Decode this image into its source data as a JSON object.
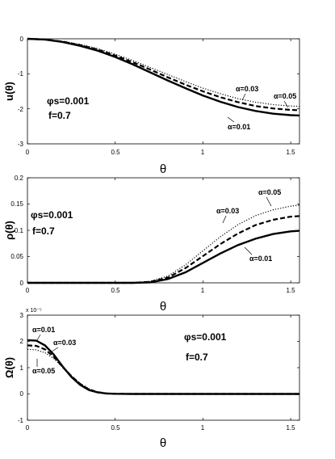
{
  "chart_data": [
    {
      "type": "line",
      "ylabel": "u(θ)",
      "xlabel": "θ",
      "xlim": [
        0,
        1.55
      ],
      "ylim": [
        -3,
        0
      ],
      "xticks": [
        "0",
        "0.5",
        "1",
        "1.5"
      ],
      "yticks": [
        "0",
        "-1",
        "-2",
        "-3"
      ],
      "params": [
        "φs=0.001",
        "f=0.7"
      ],
      "series": [
        {
          "name": "α=0.01",
          "style": "solid",
          "x": [
            0,
            0.1,
            0.2,
            0.3,
            0.4,
            0.5,
            0.6,
            0.7,
            0.8,
            0.9,
            1.0,
            1.1,
            1.2,
            1.3,
            1.4,
            1.5,
            1.55
          ],
          "y": [
            0,
            -0.02,
            -0.09,
            -0.2,
            -0.34,
            -0.52,
            -0.73,
            -0.96,
            -1.19,
            -1.41,
            -1.62,
            -1.8,
            -1.95,
            -2.06,
            -2.14,
            -2.18,
            -2.19
          ]
        },
        {
          "name": "α=0.03",
          "style": "dashed",
          "x": [
            0,
            0.1,
            0.2,
            0.3,
            0.4,
            0.5,
            0.6,
            0.7,
            0.8,
            0.9,
            1.0,
            1.1,
            1.2,
            1.3,
            1.4,
            1.5,
            1.55
          ],
          "y": [
            0,
            -0.02,
            -0.08,
            -0.18,
            -0.31,
            -0.48,
            -0.67,
            -0.88,
            -1.1,
            -1.31,
            -1.5,
            -1.67,
            -1.81,
            -1.92,
            -1.99,
            -2.03,
            -2.04
          ]
        },
        {
          "name": "α=0.05",
          "style": "dotted",
          "x": [
            0,
            0.1,
            0.2,
            0.3,
            0.4,
            0.5,
            0.6,
            0.7,
            0.8,
            0.9,
            1.0,
            1.1,
            1.2,
            1.3,
            1.4,
            1.5,
            1.55
          ],
          "y": [
            0,
            -0.02,
            -0.07,
            -0.16,
            -0.28,
            -0.44,
            -0.62,
            -0.82,
            -1.02,
            -1.22,
            -1.41,
            -1.57,
            -1.71,
            -1.81,
            -1.88,
            -1.92,
            -1.93
          ]
        }
      ],
      "annotations": [
        "α=0.03",
        "α=0.05",
        "α=0.01"
      ]
    },
    {
      "type": "line",
      "ylabel": "ρ(θ)",
      "xlabel": "θ",
      "xlim": [
        0,
        1.55
      ],
      "ylim": [
        0,
        0.2
      ],
      "xticks": [
        "0",
        "0.5",
        "1",
        "1.5"
      ],
      "yticks": [
        "0.2",
        "0.15",
        "0.1",
        "0.05",
        "0"
      ],
      "params": [
        "φs=0.001",
        "f=0.7"
      ],
      "series": [
        {
          "name": "α=0.01",
          "style": "solid",
          "x": [
            0,
            0.6,
            0.7,
            0.8,
            0.9,
            1.0,
            1.1,
            1.2,
            1.3,
            1.4,
            1.5,
            1.55
          ],
          "y": [
            0,
            0,
            0.001,
            0.007,
            0.02,
            0.038,
            0.056,
            0.072,
            0.084,
            0.093,
            0.098,
            0.099
          ]
        },
        {
          "name": "α=0.03",
          "style": "dashed",
          "x": [
            0,
            0.6,
            0.7,
            0.8,
            0.9,
            1.0,
            1.1,
            1.2,
            1.3,
            1.4,
            1.5,
            1.55
          ],
          "y": [
            0,
            0,
            0.002,
            0.01,
            0.028,
            0.051,
            0.074,
            0.094,
            0.11,
            0.12,
            0.126,
            0.127
          ]
        },
        {
          "name": "α=0.05",
          "style": "dotted",
          "x": [
            0,
            0.6,
            0.7,
            0.8,
            0.9,
            1.0,
            1.1,
            1.2,
            1.3,
            1.4,
            1.5,
            1.55
          ],
          "y": [
            0,
            0,
            0.003,
            0.013,
            0.034,
            0.061,
            0.088,
            0.111,
            0.128,
            0.139,
            0.146,
            0.148
          ]
        }
      ],
      "annotations": [
        "α=0.05",
        "α=0.03",
        "α=0.01"
      ]
    },
    {
      "type": "line",
      "ylabel": "Ω(θ)",
      "xlabel": "θ",
      "xlim": [
        0,
        1.55
      ],
      "ylim": [
        -1,
        3
      ],
      "yexponent": "x 10⁻⁵",
      "xticks": [
        "0",
        "0.5",
        "1",
        "1.5"
      ],
      "yticks": [
        "3",
        "2",
        "1",
        "0",
        "-1"
      ],
      "params": [
        "φs=0.001",
        "f=0.7"
      ],
      "series": [
        {
          "name": "α=0.01",
          "style": "solid",
          "x": [
            0,
            0.05,
            0.1,
            0.15,
            0.2,
            0.25,
            0.3,
            0.35,
            0.4,
            0.45,
            0.5,
            0.6,
            0.8,
            1.0,
            1.55
          ],
          "y": [
            2.05,
            2.03,
            1.85,
            1.5,
            1.05,
            0.65,
            0.35,
            0.15,
            0.06,
            0.02,
            0.005,
            0,
            0,
            0,
            0
          ]
        },
        {
          "name": "α=0.03",
          "style": "dashed",
          "x": [
            0,
            0.05,
            0.1,
            0.15,
            0.2,
            0.25,
            0.3,
            0.35,
            0.4,
            0.45,
            0.5,
            0.6,
            0.8,
            1.0,
            1.55
          ],
          "y": [
            1.85,
            1.83,
            1.7,
            1.42,
            1.03,
            0.68,
            0.38,
            0.17,
            0.07,
            0.02,
            0.005,
            0,
            0,
            0,
            0
          ]
        },
        {
          "name": "α=0.05",
          "style": "dotted",
          "x": [
            0,
            0.05,
            0.1,
            0.15,
            0.2,
            0.25,
            0.3,
            0.35,
            0.4,
            0.45,
            0.5,
            0.6,
            0.8,
            1.0,
            1.55
          ],
          "y": [
            1.7,
            1.68,
            1.57,
            1.35,
            1.02,
            0.7,
            0.41,
            0.2,
            0.08,
            0.03,
            0.005,
            0,
            0,
            0,
            0
          ]
        }
      ],
      "annotations": [
        "α=0.01",
        "α=0.03",
        "α=0.05"
      ]
    }
  ]
}
